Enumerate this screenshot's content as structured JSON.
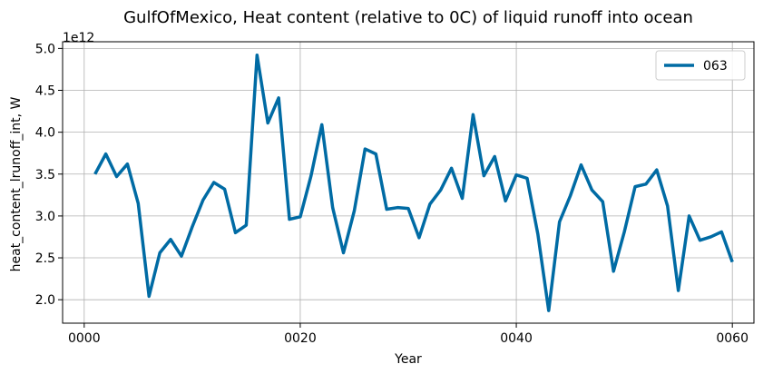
{
  "chart_data": {
    "type": "line",
    "title": "GulfOfMexico, Heat content (relative to 0C) of liquid runoff into ocean",
    "xlabel": "Year",
    "ylabel": "heat_content_lrunoff_int, W",
    "offset_text": "1e12",
    "xlim": [
      -2,
      62
    ],
    "ylim": [
      1.72,
      5.08
    ],
    "x_ticks": [
      0,
      20,
      40,
      60
    ],
    "x_tick_labels": [
      "0000",
      "0020",
      "0040",
      "0060"
    ],
    "y_ticks": [
      2.0,
      2.5,
      3.0,
      3.5,
      4.0,
      4.5,
      5.0
    ],
    "y_tick_labels": [
      "2.0",
      "2.5",
      "3.0",
      "3.5",
      "4.0",
      "4.5",
      "5.0"
    ],
    "grid": true,
    "legend_position": "top-right",
    "series": [
      {
        "name": "063",
        "color": "#006ba4",
        "x": [
          1,
          2,
          3,
          4,
          5,
          6,
          7,
          8,
          9,
          10,
          11,
          12,
          13,
          14,
          15,
          16,
          17,
          18,
          19,
          20,
          21,
          22,
          23,
          24,
          25,
          26,
          27,
          28,
          29,
          30,
          31,
          32,
          33,
          34,
          35,
          36,
          37,
          38,
          39,
          40,
          41,
          42,
          43,
          44,
          45,
          46,
          47,
          48,
          49,
          50,
          51,
          52,
          53,
          54,
          55,
          56,
          57,
          58,
          59,
          60
        ],
        "values": [
          3.5,
          3.74,
          3.47,
          3.62,
          3.15,
          2.04,
          2.56,
          2.72,
          2.52,
          2.87,
          3.19,
          3.4,
          3.32,
          2.8,
          2.89,
          4.92,
          4.11,
          4.41,
          2.96,
          2.99,
          3.48,
          4.09,
          3.1,
          2.56,
          3.06,
          3.8,
          3.74,
          3.08,
          3.1,
          3.09,
          2.74,
          3.14,
          3.31,
          3.57,
          3.21,
          4.21,
          3.48,
          3.71,
          3.18,
          3.49,
          3.45,
          2.78,
          1.87,
          2.93,
          3.24,
          3.61,
          3.31,
          3.17,
          2.34,
          2.81,
          3.35,
          3.38,
          3.55,
          3.12,
          2.11,
          3.0,
          2.71,
          2.75,
          2.81,
          2.45
        ]
      }
    ]
  }
}
